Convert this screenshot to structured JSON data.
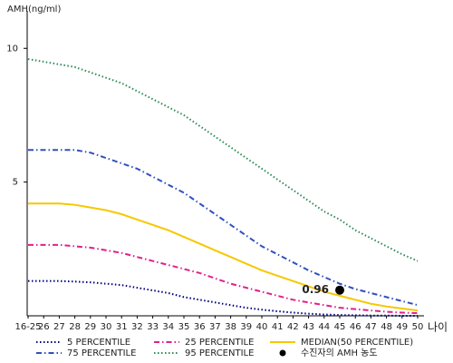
{
  "chart_data": {
    "type": "line",
    "y_label": "AMH(ng/ml)",
    "x_label": "나이",
    "categories": [
      "16-25",
      "26",
      "27",
      "28",
      "29",
      "30",
      "31",
      "32",
      "33",
      "34",
      "35",
      "36",
      "37",
      "38",
      "39",
      "40",
      "41",
      "42",
      "43",
      "44",
      "45",
      "46",
      "47",
      "48",
      "49",
      "50"
    ],
    "ylim": [
      0,
      11.4
    ],
    "yticks": [
      5,
      10
    ],
    "series": [
      {
        "name": "5 PERCENTILE",
        "color": "#000080",
        "style": "dotted",
        "values": [
          1.3,
          1.3,
          1.3,
          1.28,
          1.25,
          1.2,
          1.15,
          1.05,
          0.95,
          0.85,
          0.7,
          0.6,
          0.5,
          0.4,
          0.3,
          0.23,
          0.17,
          0.12,
          0.08,
          0.05,
          0.03,
          0.02,
          0.01,
          0.01,
          0,
          0
        ]
      },
      {
        "name": "25 PERCENTILE",
        "color": "#e0218a",
        "style": "dashdot",
        "values": [
          2.65,
          2.65,
          2.65,
          2.6,
          2.55,
          2.45,
          2.35,
          2.2,
          2.05,
          1.9,
          1.75,
          1.6,
          1.4,
          1.2,
          1.05,
          0.9,
          0.75,
          0.6,
          0.5,
          0.4,
          0.3,
          0.25,
          0.2,
          0.15,
          0.12,
          0.1
        ]
      },
      {
        "name": "MEDIAN(50 PERCENTILE)",
        "color": "#f5c800",
        "style": "solid",
        "values": [
          4.2,
          4.2,
          4.2,
          4.15,
          4.05,
          3.95,
          3.8,
          3.6,
          3.4,
          3.2,
          2.95,
          2.7,
          2.45,
          2.2,
          1.95,
          1.7,
          1.5,
          1.3,
          1.1,
          0.9,
          0.75,
          0.6,
          0.45,
          0.35,
          0.27,
          0.2
        ]
      },
      {
        "name": "75 PERCENTILE",
        "color": "#3050c0",
        "style": "dashdot",
        "values": [
          6.2,
          6.2,
          6.2,
          6.2,
          6.1,
          5.9,
          5.7,
          5.5,
          5.2,
          4.9,
          4.6,
          4.2,
          3.8,
          3.4,
          3.0,
          2.6,
          2.3,
          2.0,
          1.7,
          1.45,
          1.2,
          1.0,
          0.85,
          0.7,
          0.55,
          0.4
        ]
      },
      {
        "name": "95 PERCENTILE",
        "color": "#2e8b57",
        "style": "dotted",
        "values": [
          9.6,
          9.5,
          9.4,
          9.3,
          9.1,
          8.9,
          8.7,
          8.4,
          8.1,
          7.8,
          7.5,
          7.1,
          6.7,
          6.3,
          5.9,
          5.5,
          5.1,
          4.7,
          4.3,
          3.9,
          3.6,
          3.2,
          2.9,
          2.6,
          2.3,
          2.05
        ]
      }
    ],
    "point": {
      "name": "수진자의 AMH 농도",
      "category": "45",
      "value": 0.96,
      "color": "#000000"
    }
  }
}
